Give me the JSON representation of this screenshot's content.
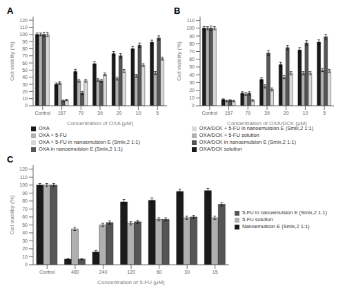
{
  "chart_data": [
    {
      "type": "bar",
      "title": "A",
      "xlabel": "Concentration of OXA (μM)",
      "ylabel": "Cell viability (%)",
      "categories": [
        "Control",
        "157",
        "79",
        "39",
        "20",
        "10",
        "5"
      ],
      "ylim": [
        0,
        125
      ],
      "yticks": [
        0,
        10,
        20,
        30,
        40,
        50,
        60,
        70,
        80,
        90,
        100,
        110,
        120
      ],
      "grid": false,
      "legend": "bottom",
      "series": [
        {
          "name": "OXA",
          "color": "#1a1a1a",
          "values": [
            100,
            30,
            48,
            59,
            73,
            80,
            89
          ],
          "errors": [
            2,
            2,
            3,
            3,
            3,
            3,
            3
          ]
        },
        {
          "name": "OXA + 5-FU",
          "color": "#b0b0b0",
          "values": [
            100,
            32,
            35,
            36,
            38,
            42,
            46
          ],
          "errors": [
            2,
            2,
            2,
            2,
            2,
            2,
            2
          ]
        },
        {
          "name": "OXA in nanoemulsion E (Smix,2 1:1)",
          "color": "#555555",
          "values": [
            100,
            7,
            18,
            35,
            70,
            85,
            95
          ],
          "errors": [
            3,
            1,
            2,
            2,
            3,
            3,
            3
          ]
        },
        {
          "name": "OXA + 5-FU in nanoemulsion E (Smix,2 1:1)",
          "color": "#d9d9d9",
          "values": [
            100,
            8,
            35,
            44,
            49,
            57,
            66
          ],
          "errors": [
            3,
            1,
            2,
            2,
            2,
            2,
            2
          ]
        }
      ]
    },
    {
      "type": "bar",
      "title": "B",
      "xlabel": "Concentration of OXA/DCK (μM)",
      "ylabel": "Cell viability (%)",
      "categories": [
        "Control",
        "157",
        "79",
        "39",
        "20",
        "10",
        "5"
      ],
      "ylim": [
        0,
        115
      ],
      "yticks": [
        0,
        10,
        20,
        30,
        40,
        50,
        60,
        70,
        80,
        90,
        100,
        110
      ],
      "grid": false,
      "legend": "bottom",
      "series": [
        {
          "name": "OXA/DCK solution",
          "color": "#1a1a1a",
          "values": [
            100,
            8,
            16,
            34,
            53,
            72,
            82
          ],
          "errors": [
            2,
            1,
            2,
            2,
            3,
            3,
            3
          ]
        },
        {
          "name": "OXA/DCK + 5-FU solution",
          "color": "#b0b0b0",
          "values": [
            100,
            6,
            15,
            25,
            37,
            42,
            46
          ],
          "errors": [
            2,
            1,
            2,
            2,
            2,
            2,
            2
          ]
        },
        {
          "name": "OXA/DCK in nanoemulsion E (Smix,2 1:1)",
          "color": "#555555",
          "values": [
            100,
            7,
            16,
            68,
            75,
            81,
            89
          ],
          "errors": [
            3,
            1,
            2,
            3,
            3,
            3,
            3
          ]
        },
        {
          "name": "OXA/DCK + 5-FU in nanoemulsion E (Smix,2 1:1)",
          "color": "#d9d9d9",
          "values": [
            100,
            6,
            7,
            21,
            42,
            42,
            45
          ],
          "errors": [
            2,
            1,
            1,
            2,
            2,
            2,
            2
          ]
        }
      ]
    },
    {
      "type": "bar",
      "title": "C",
      "xlabel": "Concentration of 5-FU (μM)",
      "ylabel": "Cell viability (%)",
      "categories": [
        "Control",
        "480",
        "240",
        "120",
        "60",
        "30",
        "15"
      ],
      "ylim": [
        0,
        125
      ],
      "yticks": [
        0,
        10,
        20,
        30,
        40,
        50,
        60,
        70,
        80,
        90,
        100,
        110,
        120
      ],
      "grid": false,
      "legend": "right",
      "series": [
        {
          "name": "Nanoemulsion E (Smix,2 1:1)",
          "color": "#1a1a1a",
          "values": [
            100,
            7,
            16,
            79,
            81,
            92,
            93
          ],
          "errors": [
            2,
            1,
            2,
            3,
            3,
            3,
            3
          ]
        },
        {
          "name": "5-FU solution",
          "color": "#b0b0b0",
          "values": [
            100,
            45,
            50,
            52,
            57,
            59,
            59
          ],
          "errors": [
            2,
            2,
            2,
            2,
            2,
            2,
            2
          ]
        },
        {
          "name": "5-FU in nanoemulsion E (Smix,2 1:1)",
          "color": "#555555",
          "values": [
            100,
            7,
            53,
            54,
            57,
            60,
            76
          ],
          "errors": [
            2,
            1,
            2,
            2,
            2,
            2,
            2
          ]
        }
      ]
    }
  ]
}
